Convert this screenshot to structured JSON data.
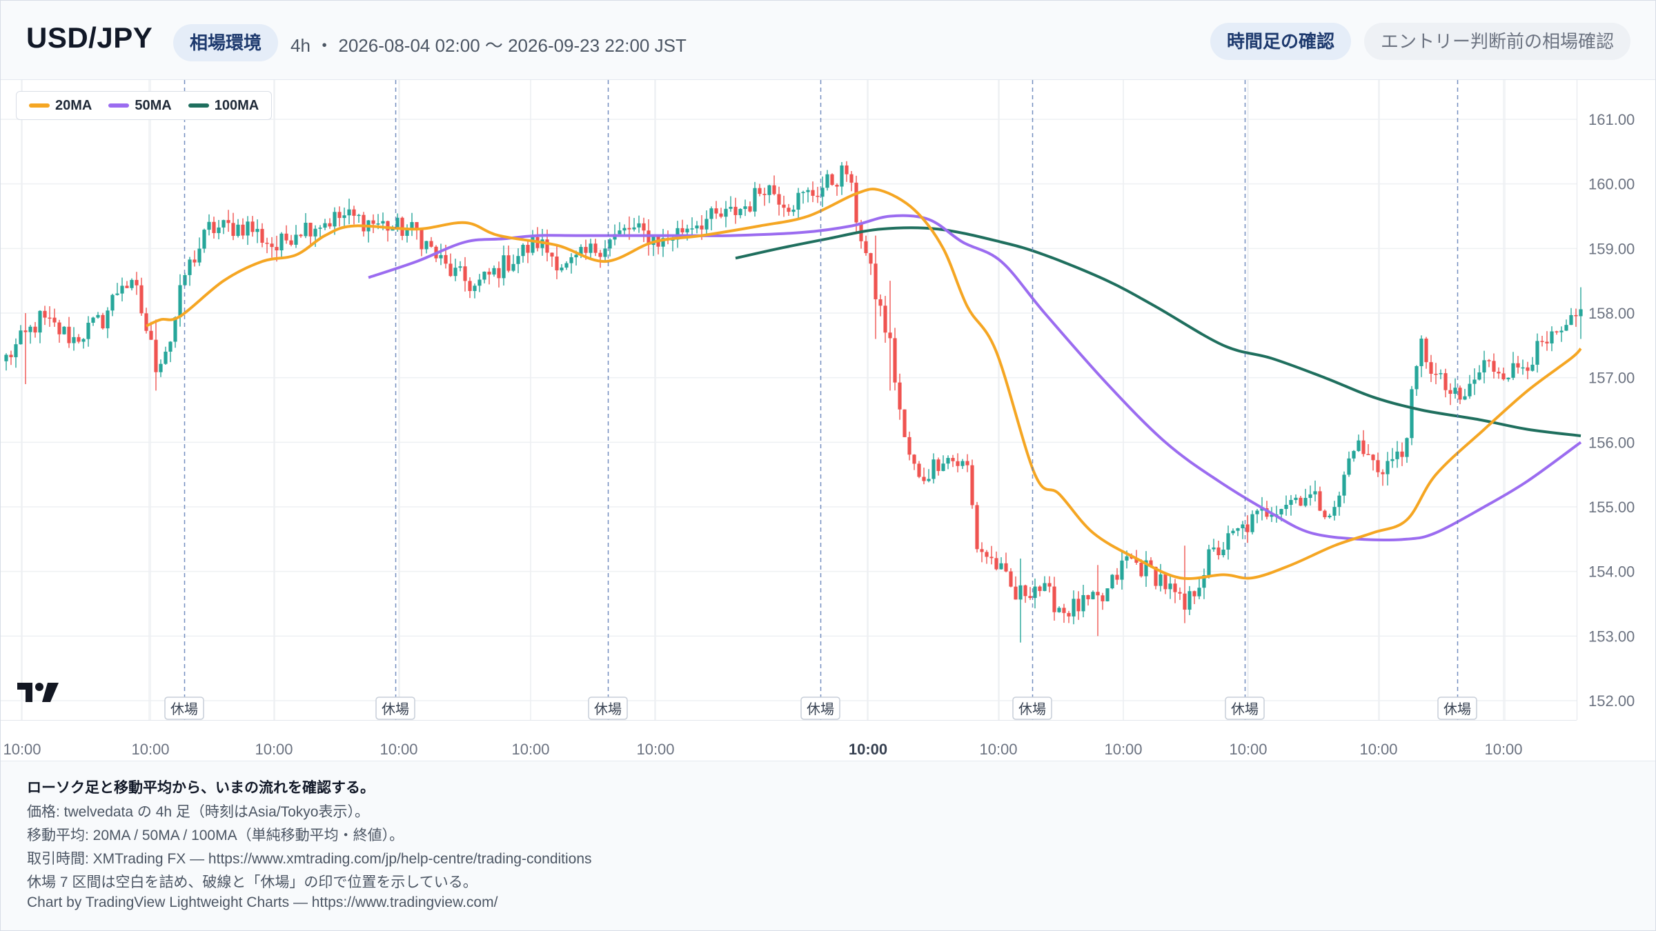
{
  "header": {
    "symbol": "USD/JPY",
    "environment_label": "相場環境",
    "meta": "4h ・ 2026-08-04 02:00 〜 2026-09-23 22:00 JST",
    "timeframe_button": "時間足の確認",
    "entry_button": "エントリー判断前の相場確認"
  },
  "legend": [
    {
      "label": "20MA",
      "color": "#f5a623"
    },
    {
      "label": "50MA",
      "color": "#9b6cf0"
    },
    {
      "label": "100MA",
      "color": "#1f6f5e"
    }
  ],
  "colors": {
    "up": "#26a69a",
    "down": "#ef5350",
    "grid": "#eef0f3",
    "break_line": "#5b7bb5"
  },
  "chart_data": {
    "type": "line",
    "symbol": "USD/JPY",
    "timeframe": "4h",
    "y_axis": {
      "ticks": [
        "161.00",
        "160.00",
        "159.00",
        "158.00",
        "157.00",
        "156.00",
        "155.00",
        "154.00",
        "153.00",
        "152.00"
      ],
      "min": 152.0,
      "max": 161.0
    },
    "x_tick_labels": [
      "10:00",
      "10:00",
      "10:00",
      "10:00",
      "10:00",
      "10:00",
      "10:00",
      "10:00",
      "10:00",
      "10:00",
      "10:00",
      "10:00",
      "10:00"
    ],
    "x_tick_bold_index": 6,
    "closed_marker_label": "休場",
    "closed_count": 7,
    "price_anchors": [
      [
        0,
        157.3
      ],
      [
        7,
        157.9
      ],
      [
        14,
        157.6
      ],
      [
        20,
        157.9
      ],
      [
        24,
        158.5
      ],
      [
        27,
        158.3
      ],
      [
        31,
        157.2
      ],
      [
        34,
        157.6
      ],
      [
        37,
        158.6
      ],
      [
        42,
        159.3
      ],
      [
        50,
        159.35
      ],
      [
        56,
        159.0
      ],
      [
        60,
        159.3
      ],
      [
        70,
        159.5
      ],
      [
        85,
        159.25
      ],
      [
        91,
        158.7
      ],
      [
        97,
        158.4
      ],
      [
        104,
        158.8
      ],
      [
        110,
        159.1
      ],
      [
        116,
        158.7
      ],
      [
        122,
        159.0
      ],
      [
        129,
        159.3
      ],
      [
        136,
        159.1
      ],
      [
        142,
        159.4
      ],
      [
        149,
        159.5
      ],
      [
        154,
        159.7
      ],
      [
        157,
        160.0
      ],
      [
        162,
        159.7
      ],
      [
        168,
        159.9
      ],
      [
        174,
        160.2
      ],
      [
        176,
        159.5
      ],
      [
        180,
        158.3
      ],
      [
        183,
        157.5
      ],
      [
        186,
        156.0
      ],
      [
        189,
        155.4
      ],
      [
        194,
        155.8
      ],
      [
        199,
        155.6
      ],
      [
        201,
        154.4
      ],
      [
        205,
        154.1
      ],
      [
        209,
        153.6
      ],
      [
        213,
        153.8
      ],
      [
        219,
        153.4
      ],
      [
        227,
        153.55
      ],
      [
        232,
        154.2
      ],
      [
        239,
        153.9
      ],
      [
        244,
        153.4
      ],
      [
        249,
        154.2
      ],
      [
        255,
        154.6
      ],
      [
        262,
        155.0
      ],
      [
        269,
        155.2
      ],
      [
        275,
        154.9
      ],
      [
        279,
        156.0
      ],
      [
        284,
        155.6
      ],
      [
        289,
        155.8
      ],
      [
        293,
        157.5
      ],
      [
        296,
        157.0
      ],
      [
        301,
        156.6
      ],
      [
        306,
        157.2
      ],
      [
        312,
        157.1
      ],
      [
        317,
        157.4
      ],
      [
        323,
        157.7
      ],
      [
        326,
        158.0
      ]
    ],
    "wicks": [
      [
        4,
        156.9,
        158.0
      ],
      [
        31,
        156.8,
        157.9
      ],
      [
        180,
        157.6,
        159.2
      ],
      [
        183,
        156.8,
        158.5
      ],
      [
        210,
        152.9,
        154.2
      ],
      [
        226,
        153.0,
        154.1
      ],
      [
        244,
        153.2,
        154.4
      ],
      [
        326,
        157.6,
        158.4
      ]
    ],
    "ma20_knots": [
      [
        29,
        157.8
      ],
      [
        32,
        157.9
      ],
      [
        36,
        157.95
      ],
      [
        45,
        158.5
      ],
      [
        53,
        158.8
      ],
      [
        60,
        158.9
      ],
      [
        66,
        159.2
      ],
      [
        72,
        159.35
      ],
      [
        85,
        159.3
      ],
      [
        95,
        159.4
      ],
      [
        102,
        159.2
      ],
      [
        114,
        159.05
      ],
      [
        124,
        158.8
      ],
      [
        134,
        159.1
      ],
      [
        144,
        159.2
      ],
      [
        156,
        159.35
      ],
      [
        166,
        159.5
      ],
      [
        176,
        159.85
      ],
      [
        181,
        159.9
      ],
      [
        188,
        159.6
      ],
      [
        194,
        159.0
      ],
      [
        199,
        158.1
      ],
      [
        205,
        157.4
      ],
      [
        213,
        155.5
      ],
      [
        218,
        155.2
      ],
      [
        225,
        154.6
      ],
      [
        234,
        154.2
      ],
      [
        243,
        153.9
      ],
      [
        252,
        153.95
      ],
      [
        258,
        153.9
      ],
      [
        266,
        154.1
      ],
      [
        275,
        154.4
      ],
      [
        283,
        154.6
      ],
      [
        290,
        154.8
      ],
      [
        296,
        155.5
      ],
      [
        306,
        156.2
      ],
      [
        315,
        156.8
      ],
      [
        324,
        157.3
      ],
      [
        326,
        157.45
      ]
    ],
    "ma50_knots": [
      [
        75,
        158.55
      ],
      [
        85,
        158.8
      ],
      [
        95,
        159.1
      ],
      [
        103,
        159.15
      ],
      [
        110,
        159.2
      ],
      [
        118,
        159.2
      ],
      [
        130,
        159.2
      ],
      [
        140,
        159.2
      ],
      [
        150,
        159.2
      ],
      [
        165,
        159.25
      ],
      [
        175,
        159.35
      ],
      [
        183,
        159.5
      ],
      [
        191,
        159.45
      ],
      [
        198,
        159.1
      ],
      [
        206,
        158.8
      ],
      [
        215,
        158.0
      ],
      [
        228,
        156.9
      ],
      [
        240,
        156.0
      ],
      [
        251,
        155.4
      ],
      [
        262,
        154.9
      ],
      [
        270,
        154.6
      ],
      [
        280,
        154.5
      ],
      [
        290,
        154.5
      ],
      [
        296,
        154.6
      ],
      [
        306,
        155.0
      ],
      [
        315,
        155.4
      ],
      [
        326,
        156.0
      ]
    ],
    "ma100_knots": [
      [
        151,
        158.85
      ],
      [
        160,
        159.0
      ],
      [
        170,
        159.15
      ],
      [
        181,
        159.3
      ],
      [
        193,
        159.3
      ],
      [
        206,
        159.1
      ],
      [
        215,
        158.9
      ],
      [
        228,
        158.5
      ],
      [
        238,
        158.1
      ],
      [
        252,
        157.5
      ],
      [
        262,
        157.3
      ],
      [
        273,
        157.0
      ],
      [
        283,
        156.7
      ],
      [
        293,
        156.5
      ],
      [
        305,
        156.35
      ],
      [
        315,
        156.2
      ],
      [
        326,
        156.1
      ]
    ]
  },
  "footer": {
    "title": "ローソク足と移動平均から、いまの流れを確認する。",
    "line1": "価格: twelvedata の 4h 足（時刻はAsia/Tokyo表示）。",
    "line2": "移動平均: 20MA / 50MA / 100MA（単純移動平均・終値）。",
    "line3": "取引時間: XMTrading FX — https://www.xmtrading.com/jp/help-centre/trading-conditions",
    "line4": "休場 7 区間は空白を詰め、破線と「休場」の印で位置を示している。",
    "line5": "Chart by TradingView Lightweight Charts — https://www.tradingview.com/"
  }
}
